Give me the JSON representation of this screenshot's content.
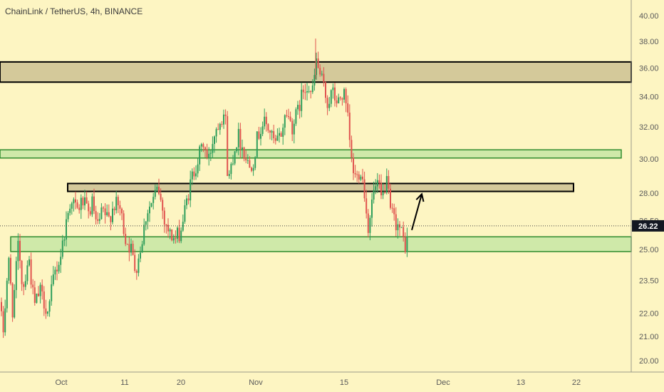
{
  "header": {
    "title": "ChainLink / TetherUS, 4h, BINANCE"
  },
  "colors": {
    "background": "#fdf5c2",
    "up_candle": "#2e9e5b",
    "down_candle": "#e0534e",
    "resistance_zone_fill": "#d4c99a",
    "support_zone_fill": "#cfe9a9",
    "support_zone_stroke": "#2e8b2e",
    "zone_stroke": "#000000",
    "price_tag_bg": "#131722"
  },
  "chart_data": {
    "type": "candlestick",
    "title": "ChainLink / TetherUS, 4h, BINANCE",
    "y_ticks": [
      "40.00",
      "38.00",
      "36.00",
      "34.00",
      "32.00",
      "30.00",
      "28.00",
      "26.50",
      "25.00",
      "23.50",
      "22.00",
      "21.00",
      "20.00"
    ],
    "x_ticks": [
      "Oct",
      "11",
      "20",
      "Nov",
      "15",
      "Dec",
      "13",
      "22"
    ],
    "ylim": [
      20.0,
      40.0
    ],
    "y_scale": "log",
    "last_price": "26.22",
    "path": [
      [
        0.0,
        22.5
      ],
      [
        4.0,
        21.0
      ],
      [
        12.0,
        24.5
      ],
      [
        18.0,
        22.0
      ],
      [
        26.0,
        25.4
      ],
      [
        32.0,
        23.0
      ],
      [
        40.0,
        24.7
      ],
      [
        48.0,
        22.3
      ],
      [
        56.0,
        23.0
      ],
      [
        68.0,
        22.0
      ],
      [
        76.0,
        23.8
      ],
      [
        84.0,
        24.5
      ],
      [
        92.0,
        26.2
      ],
      [
        100.0,
        27.8
      ],
      [
        108.0,
        27.0
      ],
      [
        116.0,
        27.6
      ],
      [
        124.0,
        26.8
      ],
      [
        130.0,
        27.5
      ],
      [
        136.0,
        26.0
      ],
      [
        144.0,
        27.0
      ],
      [
        152.0,
        26.5
      ],
      [
        160.0,
        27.4
      ],
      [
        168.0,
        27.2
      ],
      [
        176.0,
        25.6
      ],
      [
        184.0,
        25.0
      ],
      [
        190.0,
        24.0
      ],
      [
        198.0,
        25.2
      ],
      [
        206.0,
        27.0
      ],
      [
        214.0,
        27.5
      ],
      [
        222.0,
        28.3
      ],
      [
        230.0,
        26.7
      ],
      [
        238.0,
        25.8
      ],
      [
        246.0,
        25.5
      ],
      [
        254.0,
        26.0
      ],
      [
        262.0,
        27.5
      ],
      [
        270.0,
        29.0
      ],
      [
        278.0,
        30.0
      ],
      [
        286.0,
        31.0
      ],
      [
        292.0,
        29.7
      ],
      [
        300.0,
        31.5
      ],
      [
        308.0,
        32.5
      ],
      [
        316.0,
        33.0
      ],
      [
        320.0,
        28.5
      ],
      [
        326.0,
        30.0
      ],
      [
        334.0,
        31.5
      ],
      [
        342.0,
        30.5
      ],
      [
        350.0,
        29.5
      ],
      [
        356.0,
        30.0
      ],
      [
        362.0,
        31.5
      ],
      [
        370.0,
        32.3
      ],
      [
        378.0,
        31.8
      ],
      [
        386.0,
        30.8
      ],
      [
        394.0,
        31.5
      ],
      [
        402.0,
        33.0
      ],
      [
        410.0,
        32.0
      ],
      [
        418.0,
        33.0
      ],
      [
        426.0,
        34.5
      ],
      [
        432.0,
        35.0
      ],
      [
        438.0,
        34.0
      ],
      [
        444.0,
        36.5
      ],
      [
        452.0,
        35.0
      ],
      [
        460.0,
        33.5
      ],
      [
        466.0,
        34.3
      ],
      [
        474.0,
        33.5
      ],
      [
        482.0,
        34.3
      ],
      [
        488.0,
        32.5
      ],
      [
        494.0,
        29.5
      ],
      [
        500.0,
        28.8
      ],
      [
        506.0,
        29.5
      ],
      [
        512.0,
        28.0
      ],
      [
        516.0,
        26.0
      ],
      [
        524.0,
        28.0
      ],
      [
        530.0,
        28.5
      ],
      [
        536.0,
        27.5
      ],
      [
        542.0,
        28.8
      ],
      [
        548.0,
        27.0
      ],
      [
        554.0,
        26.5
      ],
      [
        560.0,
        26.2
      ],
      [
        566.0,
        25.5
      ],
      [
        570.0,
        25.1
      ],
      [
        574.0,
        26.22
      ]
    ]
  },
  "price_tag": {
    "value": "26.22"
  },
  "zones": [
    {
      "name": "resistance-zone-upper",
      "low": 35.0,
      "high": 36.45,
      "x0": 0,
      "x1": 886,
      "kind": "resistance"
    },
    {
      "name": "resistance-zone-mid",
      "low": 28.1,
      "high": 28.55,
      "x0": 95,
      "x1": 805,
      "kind": "resistance"
    },
    {
      "name": "support-zone-upper",
      "low": 30.05,
      "high": 30.55,
      "x0": 0,
      "x1": 872,
      "kind": "support"
    },
    {
      "name": "support-zone-lower",
      "low": 24.9,
      "high": 25.65,
      "x0": 15,
      "x1": 886,
      "kind": "support"
    }
  ],
  "arrow": {
    "from": [
      578,
      26.0
    ],
    "to": [
      592,
      27.95
    ]
  }
}
